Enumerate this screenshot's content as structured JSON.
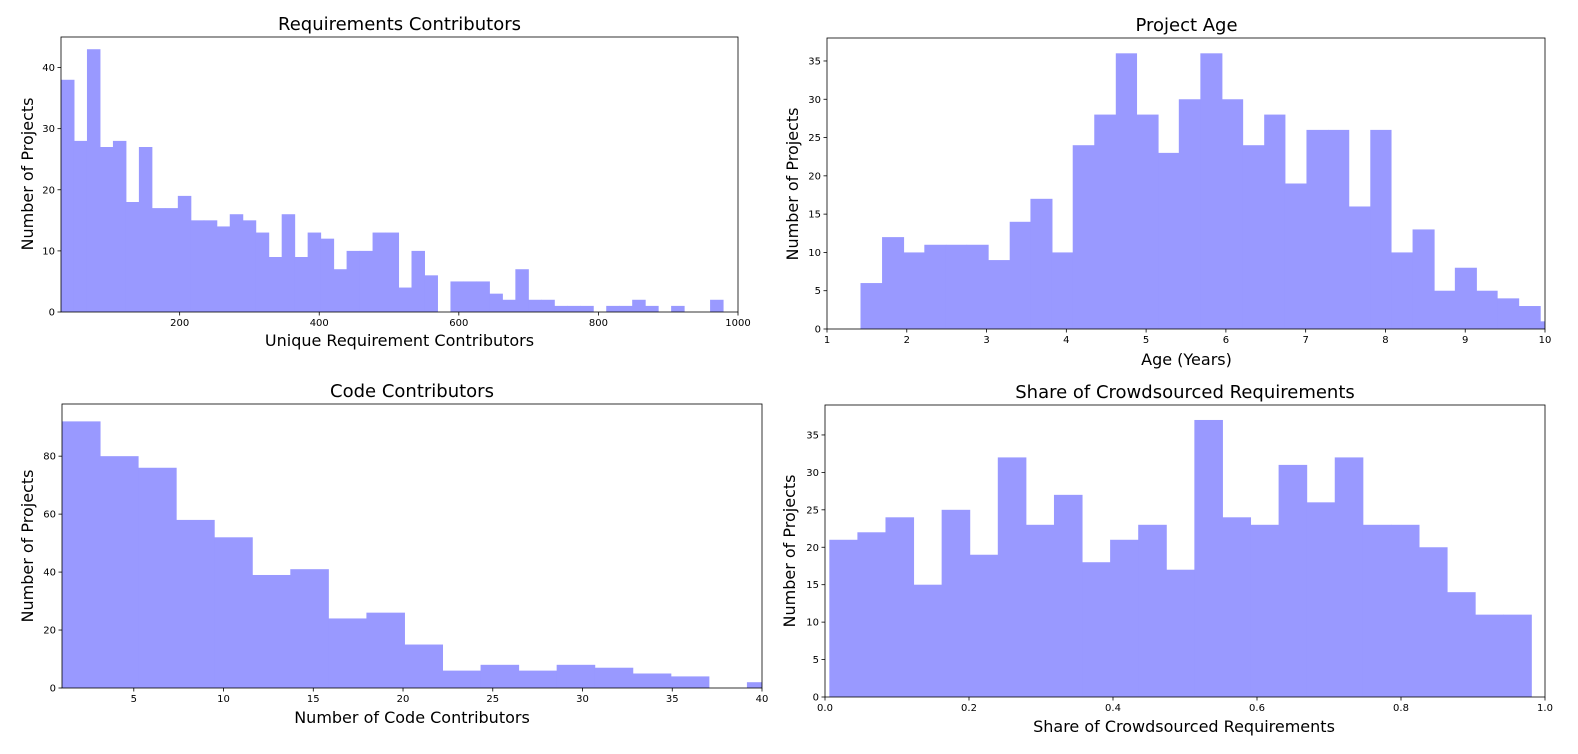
{
  "colors": {
    "bar": "#9999ff",
    "axis": "#000000"
  },
  "charts": [
    {
      "type": "bar",
      "title": "Requirements Contributors",
      "xlabel": "Unique Requirement Contributors",
      "ylabel": "Number of Projects",
      "xlim": [
        30,
        1000
      ],
      "ylim": [
        0,
        45
      ],
      "xticks": [
        200,
        400,
        600,
        800,
        1000
      ],
      "yticks": [
        0,
        10,
        20,
        30,
        40
      ],
      "bins": [
        {
          "x0": 30,
          "x1": 48.6,
          "v": 38
        },
        {
          "x0": 48.6,
          "x1": 67.2,
          "v": 28
        },
        {
          "x0": 67.2,
          "x1": 85.8,
          "v": 43
        },
        {
          "x0": 85.8,
          "x1": 104.4,
          "v": 27
        },
        {
          "x0": 104.4,
          "x1": 123,
          "v": 28
        },
        {
          "x0": 123,
          "x1": 141.6,
          "v": 18
        },
        {
          "x0": 141.6,
          "x1": 160.2,
          "v": 27
        },
        {
          "x0": 160.2,
          "x1": 178.8,
          "v": 17
        },
        {
          "x0": 178.8,
          "x1": 197.4,
          "v": 17
        },
        {
          "x0": 197.4,
          "x1": 216,
          "v": 19
        },
        {
          "x0": 216,
          "x1": 234.6,
          "v": 15
        },
        {
          "x0": 234.6,
          "x1": 253.2,
          "v": 15
        },
        {
          "x0": 253.2,
          "x1": 271.8,
          "v": 14
        },
        {
          "x0": 271.8,
          "x1": 290.4,
          "v": 16
        },
        {
          "x0": 290.4,
          "x1": 309,
          "v": 15
        },
        {
          "x0": 309,
          "x1": 327.6,
          "v": 13
        },
        {
          "x0": 327.6,
          "x1": 346.2,
          "v": 9
        },
        {
          "x0": 346.2,
          "x1": 364.8,
          "v": 16
        },
        {
          "x0": 364.8,
          "x1": 383.4,
          "v": 9
        },
        {
          "x0": 383.4,
          "x1": 402,
          "v": 13
        },
        {
          "x0": 402,
          "x1": 420.6,
          "v": 12
        },
        {
          "x0": 420.6,
          "x1": 439.2,
          "v": 7
        },
        {
          "x0": 439.2,
          "x1": 457.8,
          "v": 10
        },
        {
          "x0": 457.8,
          "x1": 476.4,
          "v": 10
        },
        {
          "x0": 476.4,
          "x1": 495,
          "v": 13
        },
        {
          "x0": 495,
          "x1": 513.6,
          "v": 13
        },
        {
          "x0": 513.6,
          "x1": 532.2,
          "v": 4
        },
        {
          "x0": 532.2,
          "x1": 550.8,
          "v": 10
        },
        {
          "x0": 550.8,
          "x1": 569.4,
          "v": 6
        },
        {
          "x0": 569.4,
          "x1": 588,
          "v": 0
        },
        {
          "x0": 588,
          "x1": 606.6,
          "v": 5
        },
        {
          "x0": 606.6,
          "x1": 625.2,
          "v": 5
        },
        {
          "x0": 625.2,
          "x1": 643.8,
          "v": 5
        },
        {
          "x0": 643.8,
          "x1": 662.4,
          "v": 3
        },
        {
          "x0": 662.4,
          "x1": 681,
          "v": 2
        },
        {
          "x0": 681,
          "x1": 699.6,
          "v": 7
        },
        {
          "x0": 699.6,
          "x1": 718.2,
          "v": 2
        },
        {
          "x0": 718.2,
          "x1": 736.8,
          "v": 2
        },
        {
          "x0": 736.8,
          "x1": 755.4,
          "v": 1
        },
        {
          "x0": 755.4,
          "x1": 774,
          "v": 1
        },
        {
          "x0": 774,
          "x1": 792.6,
          "v": 1
        },
        {
          "x0": 792.6,
          "x1": 811.2,
          "v": 0
        },
        {
          "x0": 811.2,
          "x1": 829.8,
          "v": 1
        },
        {
          "x0": 829.8,
          "x1": 848.4,
          "v": 1
        },
        {
          "x0": 848.4,
          "x1": 867,
          "v": 2
        },
        {
          "x0": 867,
          "x1": 885.6,
          "v": 1
        },
        {
          "x0": 885.6,
          "x1": 904.2,
          "v": 0
        },
        {
          "x0": 904.2,
          "x1": 922.8,
          "v": 1
        },
        {
          "x0": 922.8,
          "x1": 941.4,
          "v": 0
        },
        {
          "x0": 941.4,
          "x1": 960,
          "v": 0
        },
        {
          "x0": 960,
          "x1": 978.6,
          "v": 2
        }
      ]
    },
    {
      "type": "bar",
      "title": "Project Age",
      "xlabel": "Age (Years)",
      "ylabel": "Number of Projects",
      "xlim": [
        1,
        10
      ],
      "ylim": [
        0,
        38
      ],
      "xticks": [
        1,
        2,
        3,
        4,
        5,
        6,
        7,
        8,
        9,
        10
      ],
      "yticks": [
        0,
        5,
        10,
        15,
        20,
        25,
        30,
        35
      ],
      "bins": [
        {
          "x0": 1.42,
          "x1": 1.69,
          "v": 6
        },
        {
          "x0": 1.69,
          "x1": 1.96,
          "v": 12
        },
        {
          "x0": 1.96,
          "x1": 2.22,
          "v": 10
        },
        {
          "x0": 2.22,
          "x1": 2.49,
          "v": 11
        },
        {
          "x0": 2.49,
          "x1": 2.75,
          "v": 11
        },
        {
          "x0": 2.75,
          "x1": 3.02,
          "v": 11
        },
        {
          "x0": 3.02,
          "x1": 3.29,
          "v": 9
        },
        {
          "x0": 3.29,
          "x1": 3.55,
          "v": 14
        },
        {
          "x0": 3.55,
          "x1": 3.82,
          "v": 17
        },
        {
          "x0": 3.82,
          "x1": 4.08,
          "v": 10
        },
        {
          "x0": 4.08,
          "x1": 4.35,
          "v": 24
        },
        {
          "x0": 4.35,
          "x1": 4.62,
          "v": 28
        },
        {
          "x0": 4.62,
          "x1": 4.88,
          "v": 36
        },
        {
          "x0": 4.88,
          "x1": 5.15,
          "v": 28
        },
        {
          "x0": 5.15,
          "x1": 5.41,
          "v": 23
        },
        {
          "x0": 5.41,
          "x1": 5.68,
          "v": 30
        },
        {
          "x0": 5.68,
          "x1": 5.95,
          "v": 36
        },
        {
          "x0": 5.95,
          "x1": 6.21,
          "v": 30
        },
        {
          "x0": 6.21,
          "x1": 6.48,
          "v": 24
        },
        {
          "x0": 6.48,
          "x1": 6.74,
          "v": 28
        },
        {
          "x0": 6.74,
          "x1": 7.01,
          "v": 19
        },
        {
          "x0": 7.01,
          "x1": 7.28,
          "v": 26
        },
        {
          "x0": 7.28,
          "x1": 7.54,
          "v": 26
        },
        {
          "x0": 7.54,
          "x1": 7.81,
          "v": 16
        },
        {
          "x0": 7.81,
          "x1": 8.07,
          "v": 26
        },
        {
          "x0": 8.07,
          "x1": 8.34,
          "v": 10
        },
        {
          "x0": 8.34,
          "x1": 8.61,
          "v": 13
        },
        {
          "x0": 8.61,
          "x1": 8.87,
          "v": 5
        },
        {
          "x0": 8.87,
          "x1": 9.14,
          "v": 8
        },
        {
          "x0": 9.14,
          "x1": 9.4,
          "v": 5
        },
        {
          "x0": 9.4,
          "x1": 9.67,
          "v": 4
        },
        {
          "x0": 9.67,
          "x1": 9.94,
          "v": 3
        },
        {
          "x0": 9.94,
          "x1": 10.2,
          "v": 1
        }
      ]
    },
    {
      "type": "bar",
      "title": "Code Contributors",
      "xlabel": "Number of Code Contributors",
      "ylabel": "Number of Projects",
      "xlim": [
        1,
        40
      ],
      "ylim": [
        0,
        98
      ],
      "xticks": [
        5,
        10,
        15,
        20,
        25,
        30,
        35,
        40
      ],
      "yticks": [
        0,
        20,
        40,
        60,
        80
      ],
      "bins": [
        {
          "x0": 1,
          "x1": 3.12,
          "v": 92
        },
        {
          "x0": 3.12,
          "x1": 5.24,
          "v": 80
        },
        {
          "x0": 5.24,
          "x1": 7.36,
          "v": 76
        },
        {
          "x0": 7.36,
          "x1": 9.48,
          "v": 58
        },
        {
          "x0": 9.48,
          "x1": 11.6,
          "v": 52
        },
        {
          "x0": 11.6,
          "x1": 13.72,
          "v": 39
        },
        {
          "x0": 13.72,
          "x1": 15.84,
          "v": 41
        },
        {
          "x0": 15.84,
          "x1": 17.96,
          "v": 24
        },
        {
          "x0": 17.96,
          "x1": 20.08,
          "v": 26
        },
        {
          "x0": 20.08,
          "x1": 22.2,
          "v": 15
        },
        {
          "x0": 22.2,
          "x1": 24.32,
          "v": 6
        },
        {
          "x0": 24.32,
          "x1": 26.44,
          "v": 8
        },
        {
          "x0": 26.44,
          "x1": 28.56,
          "v": 6
        },
        {
          "x0": 28.56,
          "x1": 30.68,
          "v": 8
        },
        {
          "x0": 30.68,
          "x1": 32.8,
          "v": 7
        },
        {
          "x0": 32.8,
          "x1": 34.92,
          "v": 5
        },
        {
          "x0": 34.92,
          "x1": 37.04,
          "v": 4
        },
        {
          "x0": 37.04,
          "x1": 39.16,
          "v": 0
        },
        {
          "x0": 39.16,
          "x1": 41.28,
          "v": 2
        }
      ]
    },
    {
      "type": "bar",
      "title": "Share of Crowdsourced Requirements",
      "xlabel": "Share of Crowdsourced Requirements",
      "ylabel": "Number of Projects",
      "xlim": [
        0,
        1
      ],
      "ylim": [
        0,
        39
      ],
      "xticks": [
        0.0,
        0.2,
        0.4,
        0.6,
        0.8,
        1.0
      ],
      "xtick_labels": [
        "0.0",
        "0.2",
        "0.4",
        "0.6",
        "0.8",
        "1.0"
      ],
      "yticks": [
        0,
        5,
        10,
        15,
        20,
        25,
        30,
        35
      ],
      "bins": [
        {
          "x0": 0.006,
          "x1": 0.045,
          "v": 21
        },
        {
          "x0": 0.045,
          "x1": 0.084,
          "v": 22
        },
        {
          "x0": 0.084,
          "x1": 0.123,
          "v": 24
        },
        {
          "x0": 0.123,
          "x1": 0.162,
          "v": 15
        },
        {
          "x0": 0.162,
          "x1": 0.201,
          "v": 25
        },
        {
          "x0": 0.201,
          "x1": 0.24,
          "v": 19
        },
        {
          "x0": 0.24,
          "x1": 0.279,
          "v": 32
        },
        {
          "x0": 0.279,
          "x1": 0.318,
          "v": 23
        },
        {
          "x0": 0.318,
          "x1": 0.357,
          "v": 27
        },
        {
          "x0": 0.357,
          "x1": 0.396,
          "v": 18
        },
        {
          "x0": 0.396,
          "x1": 0.435,
          "v": 21
        },
        {
          "x0": 0.435,
          "x1": 0.474,
          "v": 23
        },
        {
          "x0": 0.474,
          "x1": 0.513,
          "v": 17
        },
        {
          "x0": 0.513,
          "x1": 0.552,
          "v": 37
        },
        {
          "x0": 0.552,
          "x1": 0.591,
          "v": 24
        },
        {
          "x0": 0.591,
          "x1": 0.63,
          "v": 23
        },
        {
          "x0": 0.63,
          "x1": 0.669,
          "v": 31
        },
        {
          "x0": 0.669,
          "x1": 0.708,
          "v": 26
        },
        {
          "x0": 0.708,
          "x1": 0.747,
          "v": 32
        },
        {
          "x0": 0.747,
          "x1": 0.786,
          "v": 23
        },
        {
          "x0": 0.786,
          "x1": 0.825,
          "v": 23
        },
        {
          "x0": 0.825,
          "x1": 0.864,
          "v": 20
        },
        {
          "x0": 0.864,
          "x1": 0.903,
          "v": 14
        },
        {
          "x0": 0.903,
          "x1": 0.942,
          "v": 11
        },
        {
          "x0": 0.942,
          "x1": 0.981,
          "v": 11
        }
      ]
    }
  ]
}
